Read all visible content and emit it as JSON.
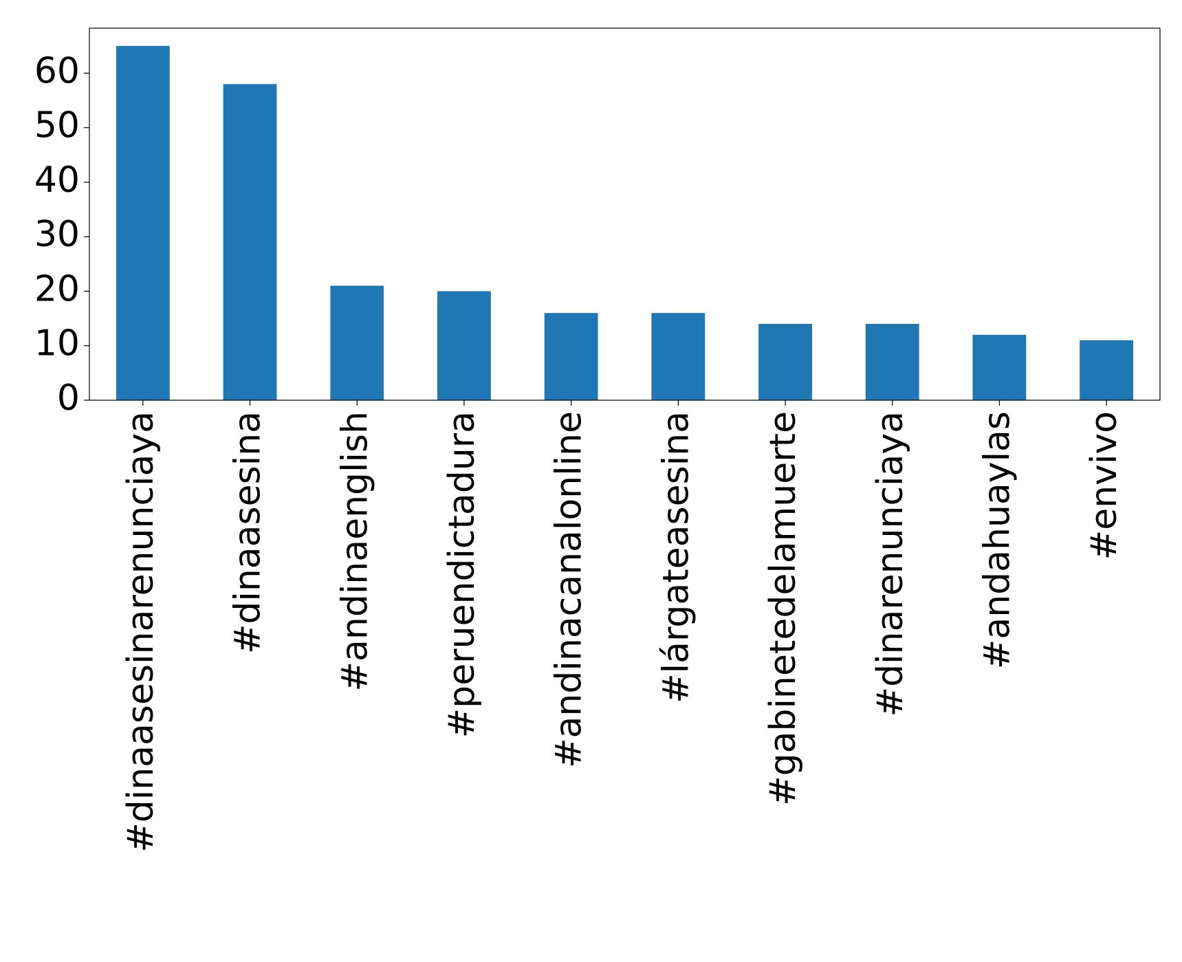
{
  "chart_data": {
    "type": "bar",
    "categories": [
      "#dinaasesinarenunciaya",
      "#dinaasesina",
      "#andinaenglish",
      "#peruendictadura",
      "#andinacanalonline",
      "#lárgateasesina",
      "#gabinetedelamuerte",
      "#dinarenunciaya",
      "#andahuaylas",
      "#envivo"
    ],
    "values": [
      65,
      58,
      21,
      20,
      16,
      16,
      14,
      14,
      12,
      11
    ],
    "color": "#1f77b4",
    "ylim": [
      0,
      68.25
    ],
    "yticks": [
      0,
      10,
      20,
      30,
      40,
      50,
      60
    ],
    "grid": false
  }
}
